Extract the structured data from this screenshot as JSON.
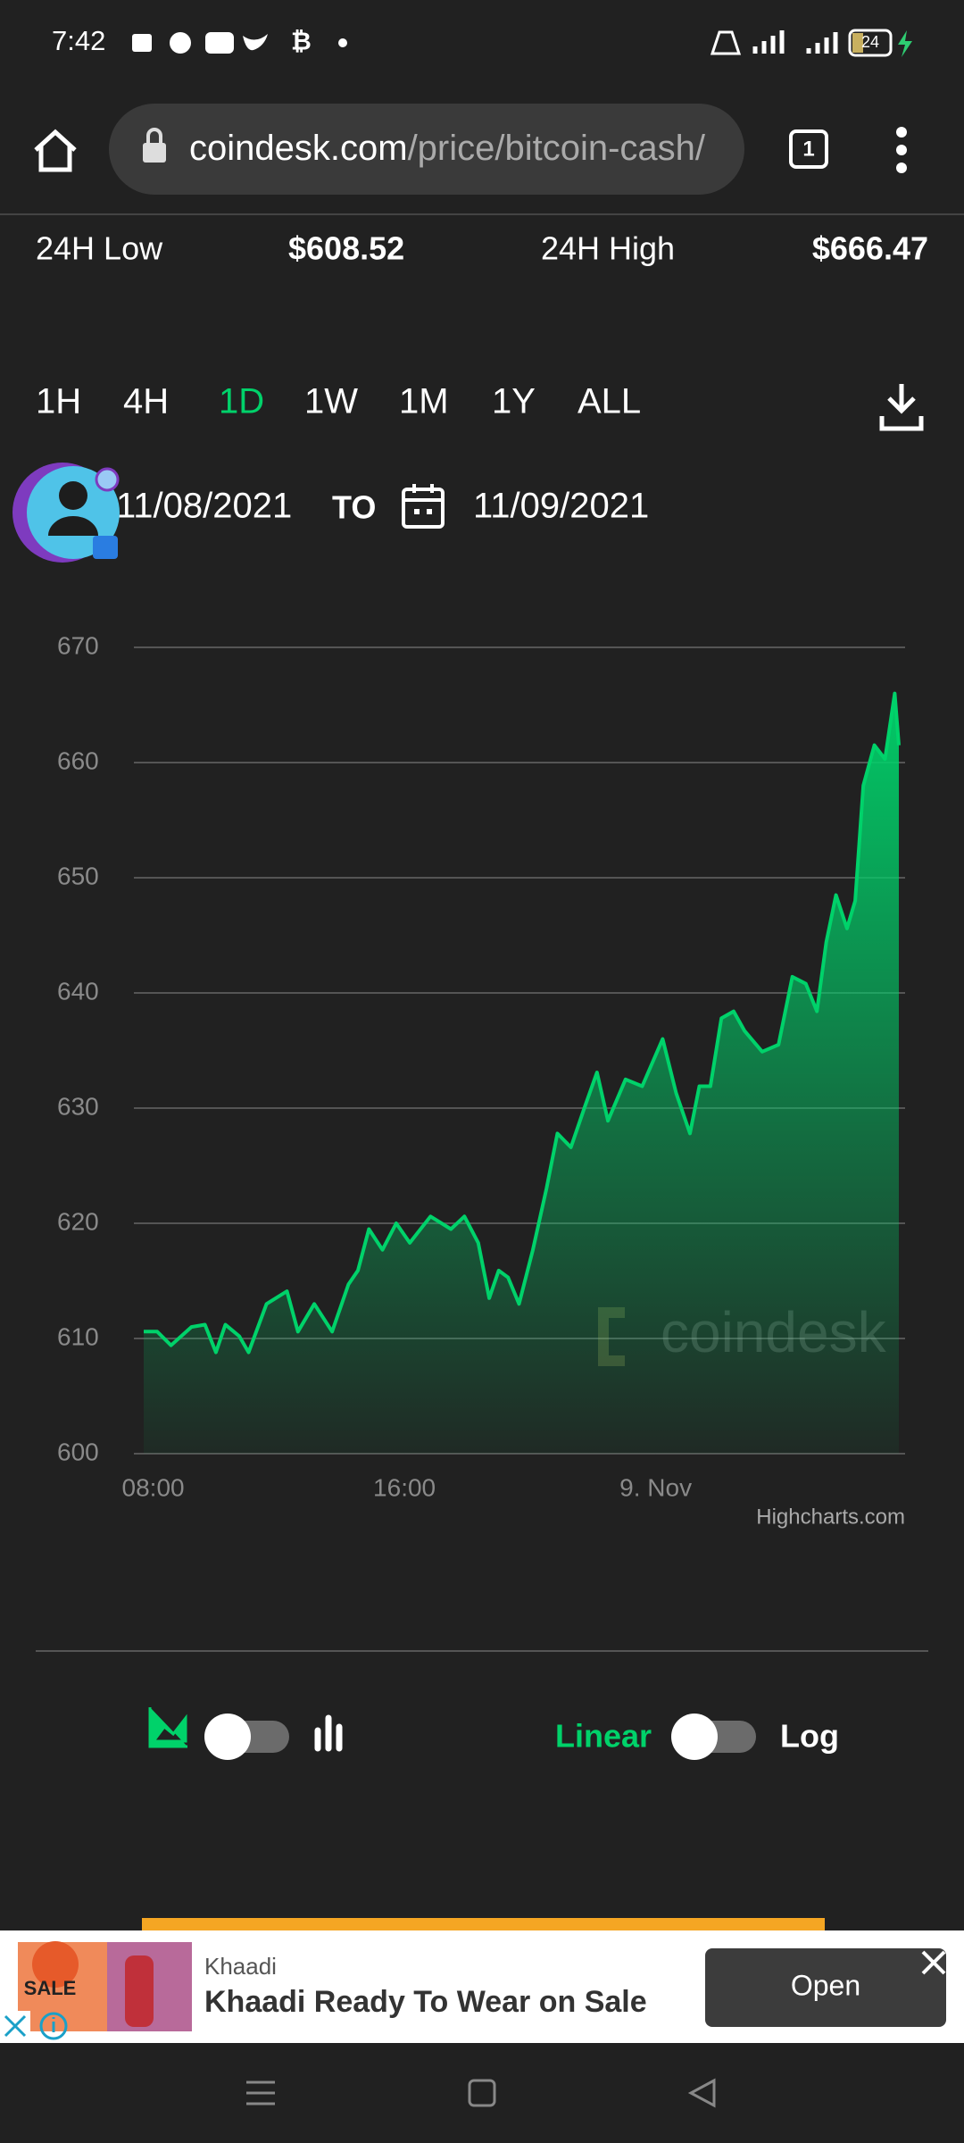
{
  "status_bar": {
    "time": "7:42",
    "battery": "24"
  },
  "browser": {
    "url_host": "coindesk.com",
    "url_path": "/price/bitcoin-cash/",
    "tab_count": "1"
  },
  "stats": {
    "low_label": "24H Low",
    "low_value": "$608.52",
    "high_label": "24H High",
    "high_value": "$666.47"
  },
  "ranges": {
    "options": [
      "1H",
      "4H",
      "1D",
      "1W",
      "1M",
      "1Y",
      "ALL"
    ],
    "active": "1D"
  },
  "date_range": {
    "from": "11/08/2021",
    "to_label": "TO",
    "to": "11/09/2021"
  },
  "chart_data": {
    "type": "area",
    "color": "#00d26a",
    "grid": true,
    "log_scale": false,
    "watermark": "coindesk",
    "credits": "Highcharts.com",
    "x": [
      7.7,
      8.13,
      8.57,
      9.22,
      9.65,
      10.0,
      10.3,
      10.74,
      11.04,
      11.61,
      12.26,
      12.61,
      13.13,
      13.7,
      14.22,
      14.52,
      14.87,
      15.3,
      15.74,
      16.17,
      16.83,
      17.48,
      17.91,
      18.35,
      18.7,
      19.0,
      19.3,
      19.65,
      20.09,
      20.52,
      20.87,
      21.3,
      21.74,
      22.13,
      22.48,
      23.04,
      23.57,
      24.22,
      24.65,
      25.09,
      25.39,
      25.74,
      26.09,
      26.48,
      26.83,
      27.39,
      27.91,
      28.35,
      28.78,
      29.13,
      29.43,
      29.74,
      30.09,
      30.35,
      30.61,
      30.96,
      31.3,
      31.61,
      31.74
    ],
    "values": [
      610.6,
      610.6,
      609.4,
      611.0,
      611.2,
      608.8,
      611.2,
      610.2,
      608.8,
      613.0,
      614.1,
      610.6,
      613.0,
      610.6,
      614.7,
      615.9,
      619.5,
      617.7,
      620.0,
      618.3,
      620.6,
      619.5,
      620.6,
      618.3,
      613.5,
      615.9,
      615.3,
      613.0,
      617.7,
      623.0,
      627.8,
      626.6,
      630.1,
      633.1,
      628.9,
      632.5,
      631.9,
      636.0,
      631.3,
      627.8,
      631.9,
      631.9,
      637.8,
      638.4,
      636.7,
      634.9,
      635.5,
      641.4,
      640.8,
      638.4,
      644.4,
      648.5,
      645.6,
      648.0,
      658.0,
      661.5,
      660.3,
      666.0,
      661.5
    ],
    "xlim": [
      7.7,
      31.74
    ],
    "xticks": [
      {
        "value": 8,
        "label": "08:00"
      },
      {
        "value": 16,
        "label": "16:00"
      },
      {
        "value": 24,
        "label": "9. Nov"
      }
    ],
    "ylim": [
      600,
      670
    ],
    "yticks": [
      600,
      610,
      620,
      630,
      640,
      650,
      660,
      670
    ]
  },
  "toggles": {
    "linear": "Linear",
    "log": "Log"
  },
  "ad": {
    "badge": "SALE",
    "advertiser": "Khaadi",
    "headline": "Khaadi Ready To Wear on Sale",
    "button": "Open"
  }
}
